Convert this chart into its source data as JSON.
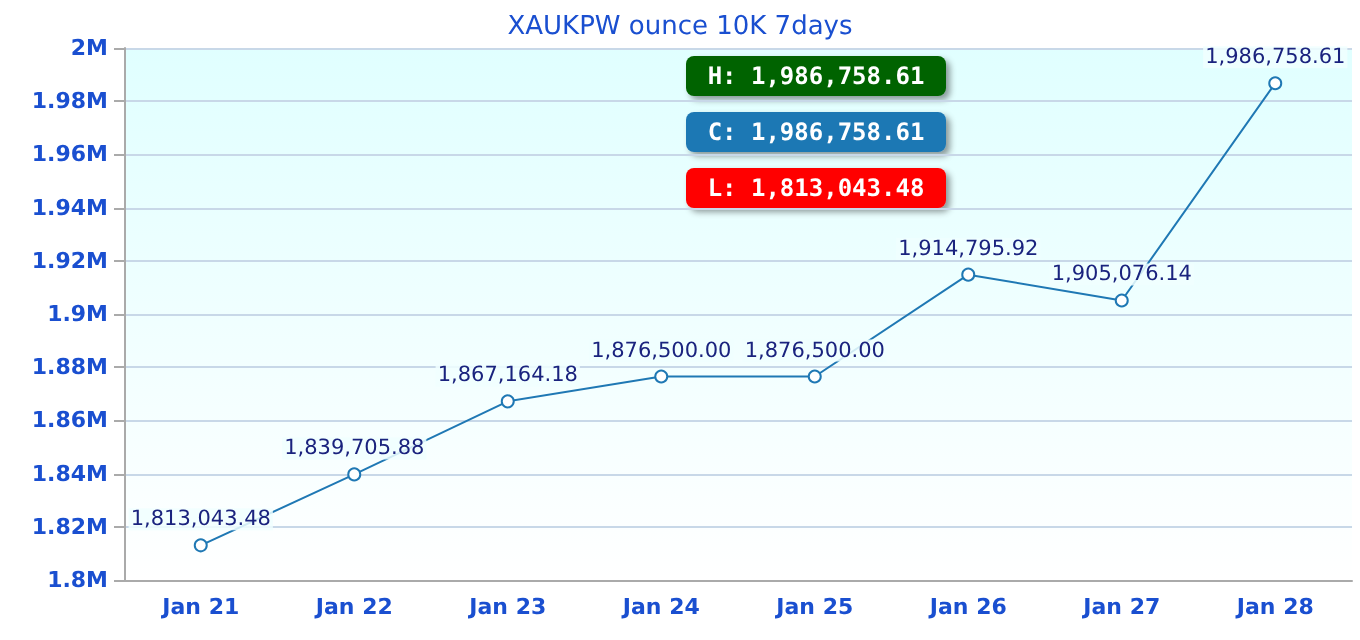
{
  "chart_data": {
    "type": "line",
    "title": "XAUKPW ounce 10K 7days",
    "categories": [
      "Jan 21",
      "Jan 22",
      "Jan 23",
      "Jan 24",
      "Jan 25",
      "Jan 26",
      "Jan 27",
      "Jan 28"
    ],
    "series": [
      {
        "color": "#1f78b4",
        "values": [
          1813043.48,
          1839705.88,
          1867164.18,
          1876500.0,
          1876500.0,
          1914795.92,
          1905076.14,
          1986758.61
        ],
        "value_labels": [
          "1,813,043.48",
          "1,839,705.88",
          "1,867,164.18",
          "1,876,500.00",
          "1,876,500.00",
          "1,914,795.92",
          "1,905,076.14",
          "1,986,758.61"
        ]
      }
    ],
    "ylim": [
      1800000,
      2000000
    ],
    "yticks": [
      {
        "value": 1800000,
        "label": "1.8M"
      },
      {
        "value": 1820000,
        "label": "1.82M"
      },
      {
        "value": 1840000,
        "label": "1.84M"
      },
      {
        "value": 1860000,
        "label": "1.86M"
      },
      {
        "value": 1880000,
        "label": "1.88M"
      },
      {
        "value": 1900000,
        "label": "1.9M"
      },
      {
        "value": 1920000,
        "label": "1.92M"
      },
      {
        "value": 1940000,
        "label": "1.94M"
      },
      {
        "value": 1960000,
        "label": "1.96M"
      },
      {
        "value": 1980000,
        "label": "1.98M"
      },
      {
        "value": 2000000,
        "label": "2M"
      }
    ],
    "annotations": [
      "H: 1,986,758.61",
      "C: 1,986,758.61",
      "L: 1,813,043.48"
    ],
    "grid": "y",
    "marker": "circle",
    "line_style": "solid"
  }
}
